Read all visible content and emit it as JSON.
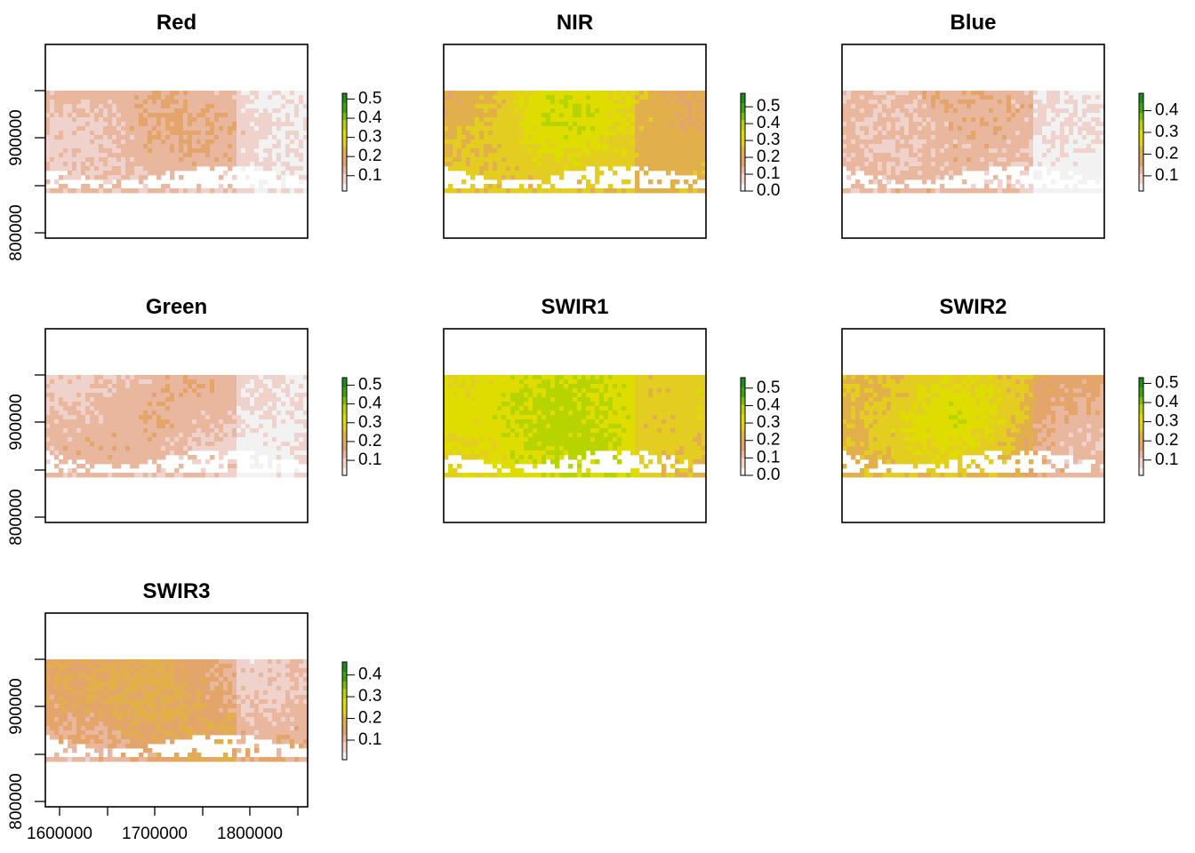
{
  "colors": {
    "ramp": [
      "#f2f2f2",
      "#eed2cb",
      "#e9b79d",
      "#e4a56a",
      "#e1b04a",
      "#e2cd20",
      "#dfdc00",
      "#b8d400",
      "#7cbe02",
      "#3ea40b",
      "#1e8f14"
    ],
    "frame": "#000000",
    "background": "#ffffff",
    "nodata": "#ffffff"
  },
  "chart_data": [
    {
      "type": "heatmap",
      "title": "Red",
      "legend_ticks": [
        "0.1",
        "0.2",
        "0.3",
        "0.4",
        "0.5"
      ],
      "legend_range": [
        0.02,
        0.53
      ],
      "base_level": 0.12,
      "yaxis": {
        "ticks": [
          "800000",
          "900000"
        ],
        "show": true
      },
      "xaxis": {
        "ticks": [],
        "show": false
      }
    },
    {
      "type": "heatmap",
      "title": "NIR",
      "legend_ticks": [
        "0.0",
        "0.1",
        "0.2",
        "0.3",
        "0.4",
        "0.5"
      ],
      "legend_range": [
        0.0,
        0.58
      ],
      "base_level": 0.26,
      "yaxis": {
        "ticks": [],
        "show": false
      },
      "xaxis": {
        "ticks": [],
        "show": false
      }
    },
    {
      "type": "heatmap",
      "title": "Blue",
      "legend_ticks": [
        "0.1",
        "0.2",
        "0.3",
        "0.4"
      ],
      "legend_range": [
        0.03,
        0.48
      ],
      "base_level": 0.1,
      "yaxis": {
        "ticks": [],
        "show": false
      },
      "xaxis": {
        "ticks": [],
        "show": false
      }
    },
    {
      "type": "heatmap",
      "title": "Green",
      "legend_ticks": [
        "0.1",
        "0.2",
        "0.3",
        "0.4",
        "0.5"
      ],
      "legend_range": [
        0.02,
        0.54
      ],
      "base_level": 0.12,
      "yaxis": {
        "ticks": [
          "800000",
          "900000"
        ],
        "show": true
      },
      "xaxis": {
        "ticks": [],
        "show": false
      }
    },
    {
      "type": "heatmap",
      "title": "SWIR1",
      "legend_ticks": [
        "0.0",
        "0.1",
        "0.2",
        "0.3",
        "0.4",
        "0.5"
      ],
      "legend_range": [
        0.0,
        0.56
      ],
      "base_level": 0.3,
      "yaxis": {
        "ticks": [],
        "show": false
      },
      "xaxis": {
        "ticks": [],
        "show": false
      }
    },
    {
      "type": "heatmap",
      "title": "SWIR2",
      "legend_ticks": [
        "0.1",
        "0.2",
        "0.3",
        "0.4",
        "0.5"
      ],
      "legend_range": [
        0.02,
        0.53
      ],
      "base_level": 0.22,
      "yaxis": {
        "ticks": [],
        "show": false
      },
      "xaxis": {
        "ticks": [],
        "show": false
      }
    },
    {
      "type": "heatmap",
      "title": "SWIR3",
      "legend_ticks": [
        "0.1",
        "0.2",
        "0.3",
        "0.4"
      ],
      "legend_range": [
        0.01,
        0.46
      ],
      "base_level": 0.15,
      "yaxis": {
        "ticks": [
          "800000",
          "900000"
        ],
        "show": true
      },
      "xaxis": {
        "ticks": [
          "1600000",
          "1700000",
          "1800000"
        ],
        "show": true
      }
    }
  ]
}
